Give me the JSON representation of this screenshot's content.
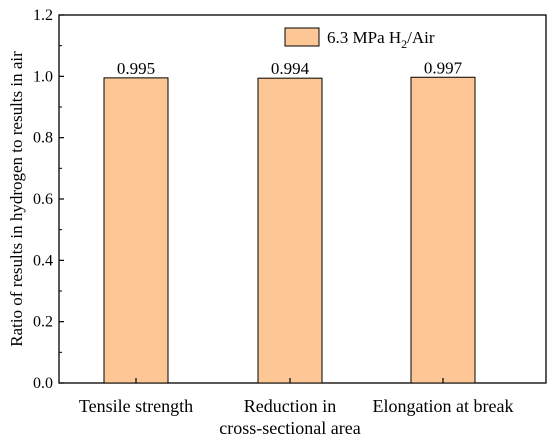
{
  "chart_data": {
    "type": "bar",
    "categories": [
      [
        "Tensile strength"
      ],
      [
        "Reduction in",
        "cross-sectional area"
      ],
      [
        "Elongation at break"
      ]
    ],
    "series": [
      {
        "name": "6.3 MPa H2/Air",
        "values": [
          0.995,
          0.994,
          0.997
        ],
        "data_labels": [
          "0.995",
          "0.994",
          "0.997"
        ],
        "color": "#fcc795",
        "edge_color": "#000000"
      }
    ],
    "ylabel": "Ratio of results in hydrogen to results in air",
    "xlabel": "",
    "ylim": [
      0.0,
      1.2
    ],
    "yticks": [
      "0.0",
      "0.2",
      "0.4",
      "0.6",
      "0.8",
      "1.0",
      "1.2"
    ],
    "grid": false,
    "legend": {
      "position": "top-right",
      "label_main": "6.3 MPa H",
      "label_sub": "2",
      "label_tail": "/Air"
    }
  }
}
